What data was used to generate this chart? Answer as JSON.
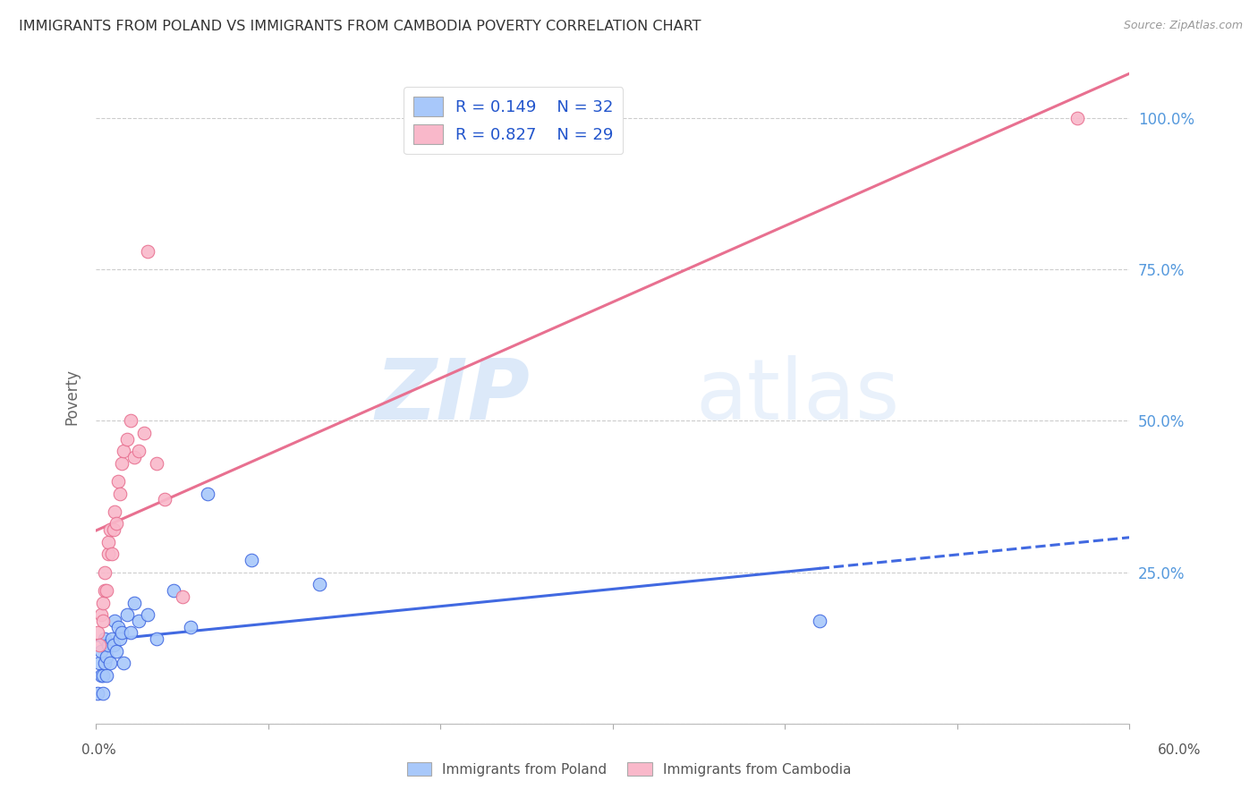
{
  "title": "IMMIGRANTS FROM POLAND VS IMMIGRANTS FROM CAMBODIA POVERTY CORRELATION CHART",
  "source": "Source: ZipAtlas.com",
  "ylabel": "Poverty",
  "xlim": [
    0.0,
    0.6
  ],
  "ylim": [
    0.0,
    1.08
  ],
  "color_poland": "#a8c8fa",
  "color_cambodia": "#f9b8ca",
  "color_line_poland": "#4169e1",
  "color_line_cambodia": "#e87090",
  "watermark_zip": "ZIP",
  "watermark_atlas": "atlas",
  "label_poland": "Immigrants from Poland",
  "label_cambodia": "Immigrants from Cambodia",
  "poland_x": [
    0.001,
    0.002,
    0.003,
    0.003,
    0.004,
    0.004,
    0.005,
    0.005,
    0.006,
    0.006,
    0.007,
    0.008,
    0.009,
    0.01,
    0.011,
    0.012,
    0.013,
    0.014,
    0.015,
    0.016,
    0.018,
    0.02,
    0.022,
    0.025,
    0.03,
    0.035,
    0.045,
    0.055,
    0.065,
    0.09,
    0.13,
    0.42
  ],
  "poland_y": [
    0.05,
    0.1,
    0.08,
    0.12,
    0.05,
    0.08,
    0.1,
    0.14,
    0.08,
    0.11,
    0.13,
    0.1,
    0.14,
    0.13,
    0.17,
    0.12,
    0.16,
    0.14,
    0.15,
    0.1,
    0.18,
    0.15,
    0.2,
    0.17,
    0.18,
    0.14,
    0.22,
    0.16,
    0.38,
    0.27,
    0.23,
    0.17
  ],
  "cambodia_x": [
    0.001,
    0.002,
    0.003,
    0.004,
    0.004,
    0.005,
    0.005,
    0.006,
    0.007,
    0.007,
    0.008,
    0.009,
    0.01,
    0.011,
    0.012,
    0.013,
    0.014,
    0.015,
    0.016,
    0.018,
    0.02,
    0.022,
    0.025,
    0.028,
    0.03,
    0.035,
    0.04,
    0.05,
    0.57
  ],
  "cambodia_y": [
    0.15,
    0.13,
    0.18,
    0.17,
    0.2,
    0.22,
    0.25,
    0.22,
    0.28,
    0.3,
    0.32,
    0.28,
    0.32,
    0.35,
    0.33,
    0.4,
    0.38,
    0.43,
    0.45,
    0.47,
    0.5,
    0.44,
    0.45,
    0.48,
    0.78,
    0.43,
    0.37,
    0.21,
    1.0
  ]
}
